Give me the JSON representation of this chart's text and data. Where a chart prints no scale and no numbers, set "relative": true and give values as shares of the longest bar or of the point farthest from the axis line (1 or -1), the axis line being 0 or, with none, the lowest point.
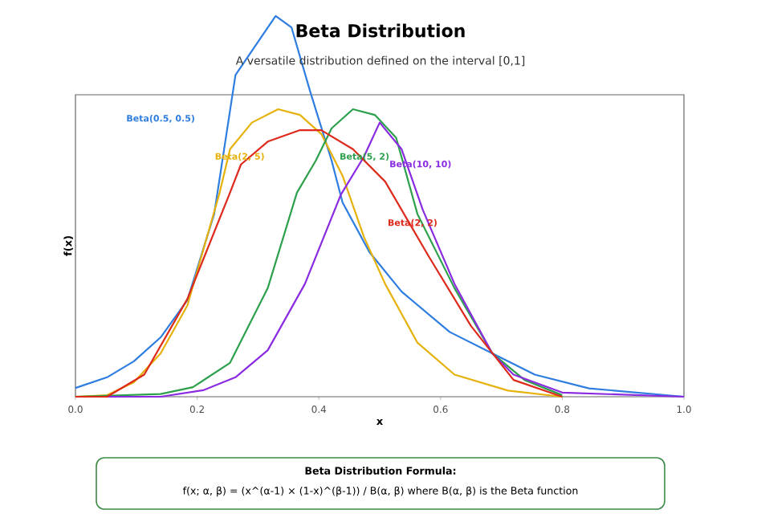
{
  "chart_data": {
    "type": "line",
    "title": "Beta Distribution",
    "subtitle": "A versatile distribution defined on the interval [0,1]",
    "xlabel": "x",
    "ylabel": "f(x)",
    "relative": true,
    "xlim": [
      0,
      1
    ],
    "xticks": [
      {
        "value": 0,
        "label": "0.0"
      },
      {
        "value": 0.2,
        "label": "0.2"
      },
      {
        "value": 0.4,
        "label": "0.4"
      },
      {
        "value": 0.6,
        "label": "0.6"
      },
      {
        "value": 0.8,
        "label": "0.8"
      },
      {
        "value": 1,
        "label": "1.0"
      }
    ],
    "series": [
      {
        "name": "Beta(0.5, 0.5)",
        "color": "#2e7de0",
        "x": [
          0.0,
          0.052,
          0.096,
          0.14,
          0.184,
          0.228,
          0.263,
          0.329,
          0.355,
          0.386,
          0.421,
          0.439,
          0.483,
          0.536,
          0.615,
          0.685,
          0.755,
          0.844,
          1.0
        ],
        "values": [
          0.023,
          0.051,
          0.093,
          0.156,
          0.254,
          0.48,
          0.845,
          1.0,
          0.97,
          0.8,
          0.62,
          0.51,
          0.38,
          0.276,
          0.17,
          0.114,
          0.058,
          0.022,
          0.0
        ]
      },
      {
        "name": "Beta(2, 5)",
        "color": "#e6b10a",
        "x": [
          0.0,
          0.052,
          0.096,
          0.14,
          0.184,
          0.237,
          0.254,
          0.29,
          0.333,
          0.369,
          0.404,
          0.439,
          0.474,
          0.509,
          0.562,
          0.623,
          0.711,
          0.8
        ],
        "values": [
          0.0,
          0.004,
          0.038,
          0.114,
          0.24,
          0.536,
          0.65,
          0.72,
          0.755,
          0.74,
          0.69,
          0.58,
          0.42,
          0.296,
          0.142,
          0.058,
          0.016,
          0.0
        ]
      },
      {
        "name": "Beta(5, 2)",
        "color": "#2ca04c",
        "x": [
          0.0,
          0.14,
          0.193,
          0.254,
          0.316,
          0.364,
          0.395,
          0.421,
          0.456,
          0.492,
          0.527,
          0.562,
          0.623,
          0.685,
          0.738,
          0.8
        ],
        "values": [
          0.0,
          0.007,
          0.025,
          0.089,
          0.285,
          0.536,
          0.62,
          0.705,
          0.755,
          0.74,
          0.68,
          0.48,
          0.285,
          0.114,
          0.044,
          0.004
        ]
      },
      {
        "name": "Beta(10, 10)",
        "color": "#8a2be2",
        "x": [
          0.0,
          0.14,
          0.21,
          0.263,
          0.316,
          0.377,
          0.436,
          0.474,
          0.5,
          0.536,
          0.571,
          0.623,
          0.685,
          0.72,
          0.8,
          1.0
        ],
        "values": [
          0.0,
          0.0,
          0.017,
          0.051,
          0.122,
          0.296,
          0.53,
          0.63,
          0.72,
          0.65,
          0.49,
          0.296,
          0.114,
          0.058,
          0.011,
          0.0
        ]
      },
      {
        "name": "Beta(2, 2)",
        "color": "#dd2a1b",
        "x": [
          0.0,
          0.052,
          0.113,
          0.184,
          0.254,
          0.272,
          0.316,
          0.369,
          0.404,
          0.456,
          0.509,
          0.58,
          0.65,
          0.72,
          0.8
        ],
        "values": [
          0.0,
          0.0,
          0.058,
          0.257,
          0.536,
          0.61,
          0.67,
          0.7,
          0.7,
          0.65,
          0.565,
          0.37,
          0.186,
          0.044,
          0.0
        ]
      }
    ],
    "annotations": [
      "Beta Distribution Formula:",
      "f(x; α, β) = (x^(α-1) × (1-x)^(β-1)) / B(α, β) where B(α, β) is the Beta function"
    ]
  }
}
